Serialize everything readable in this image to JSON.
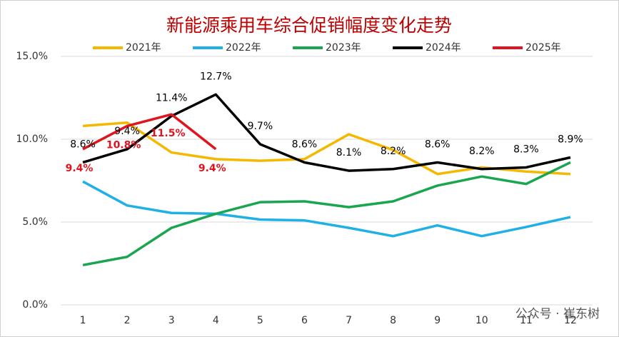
{
  "chart_data": {
    "type": "line",
    "title": "新能源乘用车综合促销幅度变化走势",
    "categories": [
      "1",
      "2",
      "3",
      "4",
      "5",
      "6",
      "7",
      "8",
      "9",
      "10",
      "11",
      "12"
    ],
    "series": [
      {
        "name": "2021年",
        "color": "#f5b800",
        "values": [
          10.8,
          11.0,
          9.2,
          8.8,
          8.7,
          8.8,
          10.3,
          9.35,
          7.9,
          8.3,
          8.05,
          7.9
        ]
      },
      {
        "name": "2022年",
        "color": "#1fb0e6",
        "values": [
          7.45,
          6.0,
          5.55,
          5.5,
          5.15,
          5.1,
          4.65,
          4.15,
          4.8,
          4.15,
          4.7,
          5.3
        ]
      },
      {
        "name": "2023年",
        "color": "#1aa650",
        "values": [
          2.4,
          2.9,
          4.65,
          5.5,
          6.2,
          6.25,
          5.9,
          6.25,
          7.2,
          7.75,
          7.3,
          8.6
        ]
      },
      {
        "name": "2024年",
        "color": "#000000",
        "values": [
          8.6,
          9.4,
          11.4,
          12.7,
          9.7,
          8.6,
          8.1,
          8.2,
          8.6,
          8.2,
          8.3,
          8.9
        ],
        "value_labels": [
          "8.6%",
          "9.4%",
          "11.4%",
          "12.7%",
          "9.7%",
          "8.6%",
          "8.1%",
          "8.2%",
          "8.6%",
          "8.2%",
          "8.3%",
          "8.9%"
        ]
      },
      {
        "name": "2025年",
        "color": "#e0141e",
        "values": [
          9.4,
          10.8,
          11.5,
          9.4,
          null,
          null,
          null,
          null,
          null,
          null,
          null,
          null
        ],
        "value_labels": [
          "9.4%",
          "10.8%",
          "11.5%",
          "9.4%",
          null,
          null,
          null,
          null,
          null,
          null,
          null,
          null
        ]
      }
    ],
    "ylim": [
      0,
      15
    ],
    "yticks": [
      {
        "value": 0,
        "label": "0.0%"
      },
      {
        "value": 5,
        "label": "5.0%"
      },
      {
        "value": 10,
        "label": "10.0%"
      },
      {
        "value": 15,
        "label": "15.0%"
      }
    ],
    "grid": true,
    "legend": "top",
    "watermark": "公众号 · 崔东树"
  }
}
